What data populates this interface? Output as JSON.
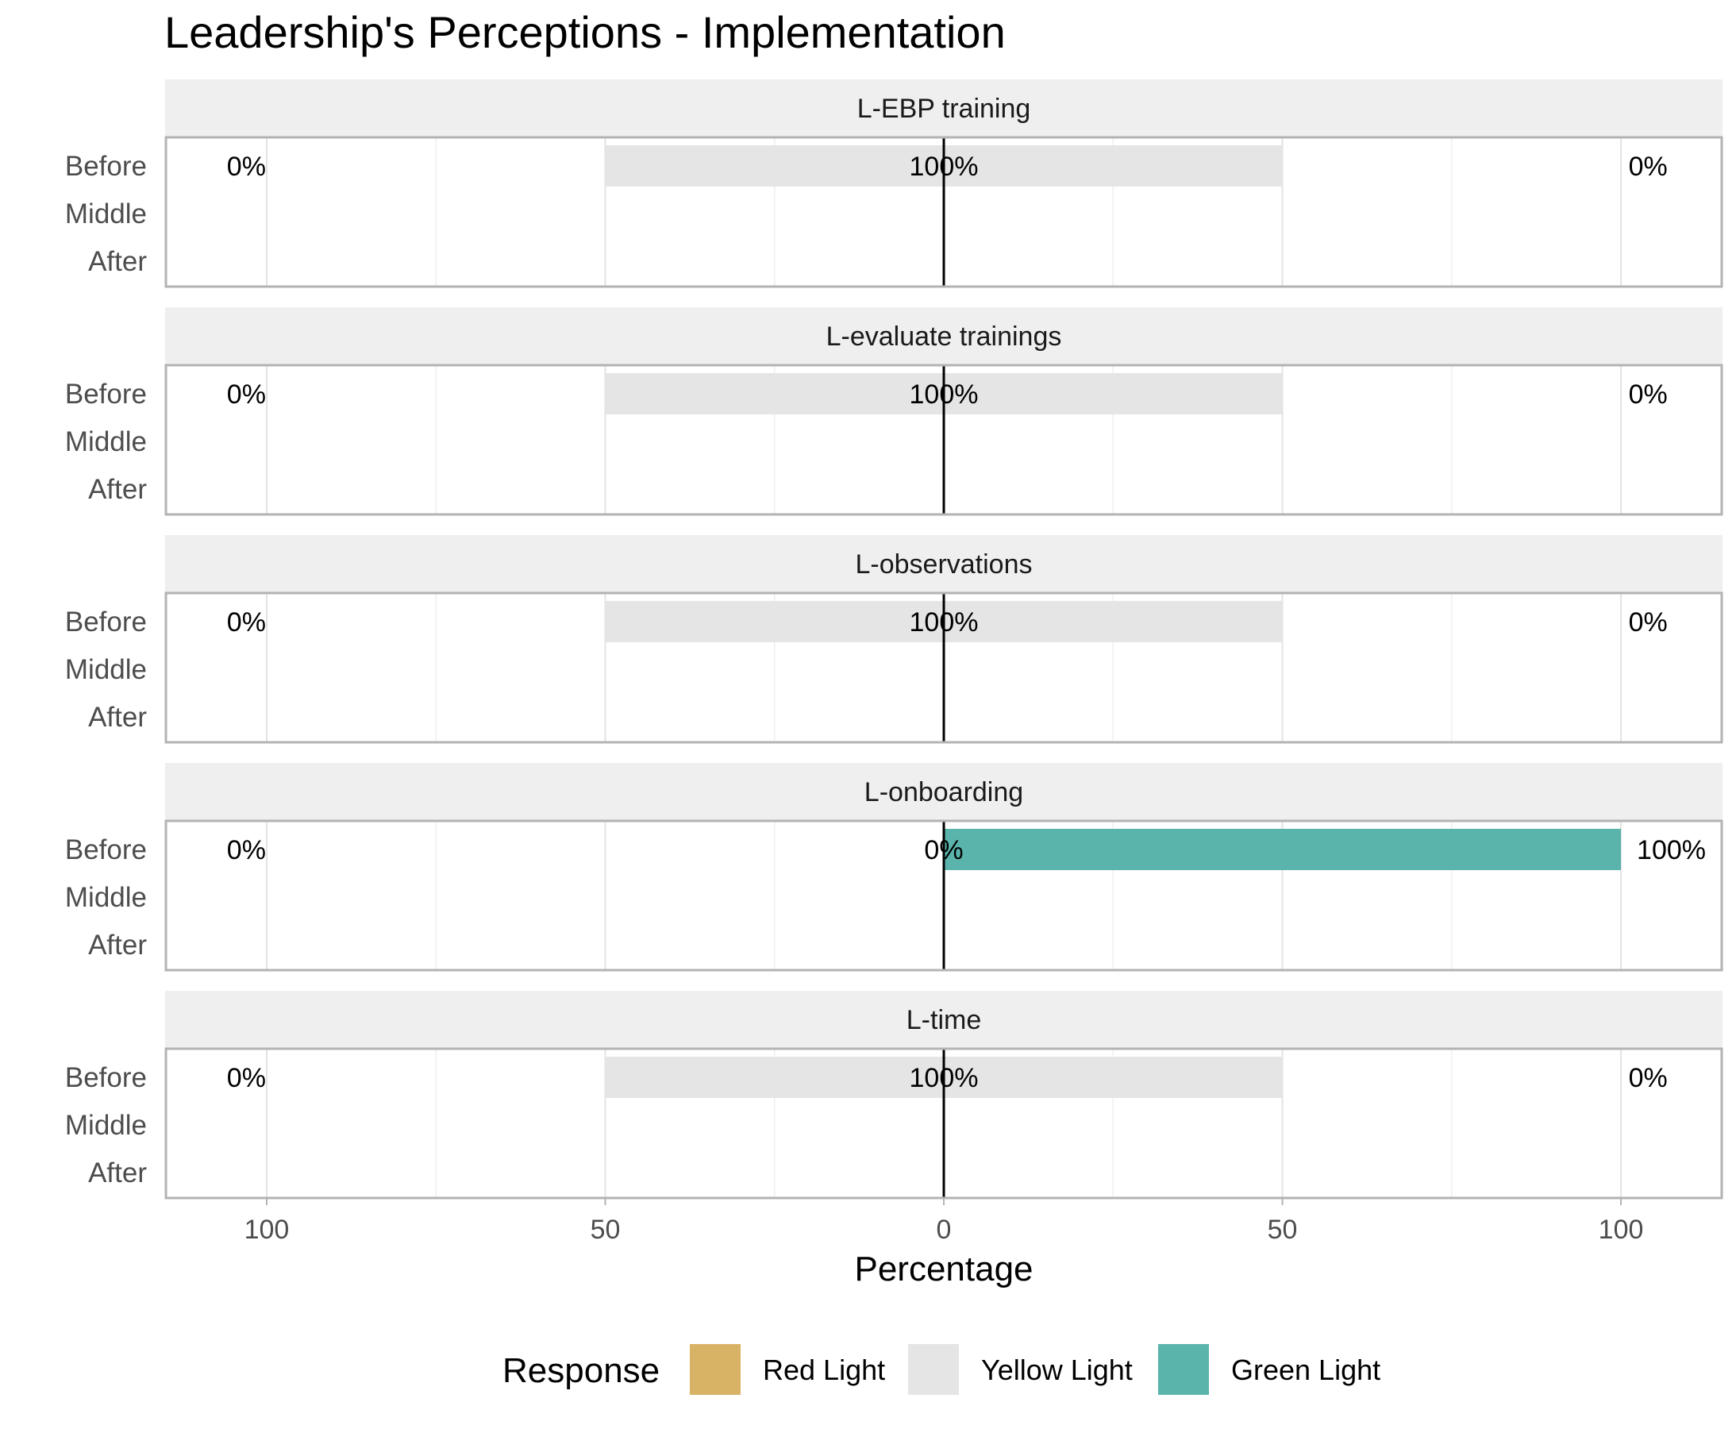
{
  "chart_data": {
    "type": "bar",
    "title": "Leadership's Perceptions - Implementation",
    "xlabel": "Percentage",
    "ylabel": "",
    "xlim": [
      -115,
      115
    ],
    "x_ticks": [
      -100,
      -50,
      0,
      50,
      100
    ],
    "x_tick_labels": [
      "100",
      "50",
      "0",
      "50",
      "100"
    ],
    "categories": [
      "Before",
      "Middle",
      "After"
    ],
    "diverging": true,
    "grid": true,
    "legend": {
      "title": "Response",
      "position": "bottom",
      "items": [
        {
          "label": "Red Light",
          "color": "#D9B365"
        },
        {
          "label": "Yellow Light",
          "color": "#E5E5E5"
        },
        {
          "label": "Green Light",
          "color": "#5AB4AC"
        }
      ]
    },
    "panels": [
      {
        "name": "L-EBP training",
        "rows": [
          {
            "category": "Before",
            "red": 0,
            "yellow": 100,
            "green": 0,
            "left_label": "0%",
            "center_label": "100%",
            "right_label": "0%"
          }
        ]
      },
      {
        "name": "L-evaluate trainings",
        "rows": [
          {
            "category": "Before",
            "red": 0,
            "yellow": 100,
            "green": 0,
            "left_label": "0%",
            "center_label": "100%",
            "right_label": "0%"
          }
        ]
      },
      {
        "name": "L-observations",
        "rows": [
          {
            "category": "Before",
            "red": 0,
            "yellow": 100,
            "green": 0,
            "left_label": "0%",
            "center_label": "100%",
            "right_label": "0%"
          }
        ]
      },
      {
        "name": "L-onboarding",
        "rows": [
          {
            "category": "Before",
            "red": 0,
            "yellow": 0,
            "green": 100,
            "left_label": "0%",
            "center_label": "0%",
            "right_label": "100%"
          }
        ]
      },
      {
        "name": "L-time",
        "rows": [
          {
            "category": "Before",
            "red": 0,
            "yellow": 100,
            "green": 0,
            "left_label": "0%",
            "center_label": "100%",
            "right_label": "0%"
          }
        ]
      }
    ]
  }
}
